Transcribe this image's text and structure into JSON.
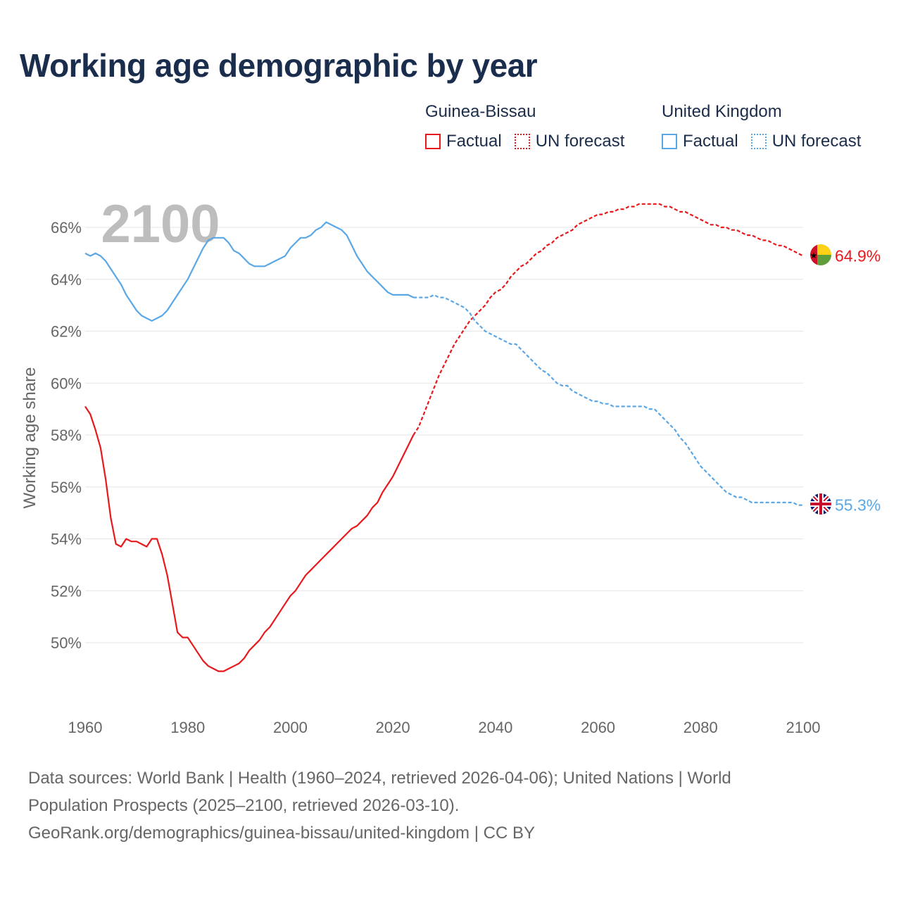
{
  "title": "Working age demographic by year",
  "legend": [
    {
      "country": "Guinea-Bissau",
      "color": "#e8191c",
      "items": [
        "Factual",
        "UN forecast"
      ]
    },
    {
      "country": "United Kingdom",
      "color": "#5aa7e6",
      "items": [
        "Factual",
        "UN forecast"
      ]
    }
  ],
  "footer": {
    "line1": "Data sources: World Bank | Health (1960–2024, retrieved 2026-04-06); United Nations | World",
    "line2": "Population Prospects (2025–2100, retrieved 2026-03-10).",
    "line3": "GeoRank.org/demographics/guinea-bissau/united-kingdom | CC BY"
  },
  "chart_data": {
    "type": "line",
    "title": "Working age demographic by year",
    "year_label": "2100",
    "xlabel": "",
    "ylabel": "Working age share",
    "xlim": [
      1960,
      2100
    ],
    "ylim": [
      48,
      67.5
    ],
    "x_ticks": [
      "1960",
      "1980",
      "2000",
      "2020",
      "2040",
      "2060",
      "2080",
      "2100"
    ],
    "y_ticks": [
      "50%",
      "52%",
      "54%",
      "56%",
      "58%",
      "60%",
      "62%",
      "64%",
      "66%"
    ],
    "grid": true,
    "series": [
      {
        "name": "Guinea-Bissau",
        "color": "#e8191c",
        "end_label": "64.9%",
        "flag": "guinea-bissau",
        "factual": [
          [
            1960,
            59.1
          ],
          [
            1961,
            58.8
          ],
          [
            1962,
            58.2
          ],
          [
            1963,
            57.5
          ],
          [
            1964,
            56.3
          ],
          [
            1965,
            54.8
          ],
          [
            1966,
            53.8
          ],
          [
            1967,
            53.7
          ],
          [
            1968,
            54.0
          ],
          [
            1969,
            53.9
          ],
          [
            1970,
            53.9
          ],
          [
            1971,
            53.8
          ],
          [
            1972,
            53.7
          ],
          [
            1973,
            54.0
          ],
          [
            1974,
            54.0
          ],
          [
            1975,
            53.4
          ],
          [
            1976,
            52.6
          ],
          [
            1977,
            51.5
          ],
          [
            1978,
            50.4
          ],
          [
            1979,
            50.2
          ],
          [
            1980,
            50.2
          ],
          [
            1981,
            49.9
          ],
          [
            1982,
            49.6
          ],
          [
            1983,
            49.3
          ],
          [
            1984,
            49.1
          ],
          [
            1985,
            49.0
          ],
          [
            1986,
            48.9
          ],
          [
            1987,
            48.9
          ],
          [
            1988,
            49.0
          ],
          [
            1989,
            49.1
          ],
          [
            1990,
            49.2
          ],
          [
            1991,
            49.4
          ],
          [
            1992,
            49.7
          ],
          [
            1993,
            49.9
          ],
          [
            1994,
            50.1
          ],
          [
            1995,
            50.4
          ],
          [
            1996,
            50.6
          ],
          [
            1997,
            50.9
          ],
          [
            1998,
            51.2
          ],
          [
            1999,
            51.5
          ],
          [
            2000,
            51.8
          ],
          [
            2001,
            52.0
          ],
          [
            2002,
            52.3
          ],
          [
            2003,
            52.6
          ],
          [
            2004,
            52.8
          ],
          [
            2005,
            53.0
          ],
          [
            2006,
            53.2
          ],
          [
            2007,
            53.4
          ],
          [
            2008,
            53.6
          ],
          [
            2009,
            53.8
          ],
          [
            2010,
            54.0
          ],
          [
            2011,
            54.2
          ],
          [
            2012,
            54.4
          ],
          [
            2013,
            54.5
          ],
          [
            2014,
            54.7
          ],
          [
            2015,
            54.9
          ],
          [
            2016,
            55.2
          ],
          [
            2017,
            55.4
          ],
          [
            2018,
            55.8
          ],
          [
            2019,
            56.1
          ],
          [
            2020,
            56.4
          ],
          [
            2021,
            56.8
          ],
          [
            2022,
            57.2
          ],
          [
            2023,
            57.6
          ],
          [
            2024,
            58.0
          ]
        ],
        "forecast": [
          [
            2024,
            58.0
          ],
          [
            2025,
            58.3
          ],
          [
            2026,
            58.8
          ],
          [
            2027,
            59.3
          ],
          [
            2028,
            59.8
          ],
          [
            2029,
            60.3
          ],
          [
            2030,
            60.7
          ],
          [
            2031,
            61.1
          ],
          [
            2032,
            61.5
          ],
          [
            2033,
            61.8
          ],
          [
            2034,
            62.1
          ],
          [
            2035,
            62.4
          ],
          [
            2036,
            62.6
          ],
          [
            2037,
            62.8
          ],
          [
            2038,
            63.0
          ],
          [
            2039,
            63.3
          ],
          [
            2040,
            63.5
          ],
          [
            2041,
            63.6
          ],
          [
            2042,
            63.8
          ],
          [
            2043,
            64.1
          ],
          [
            2044,
            64.3
          ],
          [
            2045,
            64.5
          ],
          [
            2046,
            64.6
          ],
          [
            2047,
            64.8
          ],
          [
            2048,
            65.0
          ],
          [
            2049,
            65.1
          ],
          [
            2050,
            65.3
          ],
          [
            2051,
            65.4
          ],
          [
            2052,
            65.6
          ],
          [
            2053,
            65.7
          ],
          [
            2054,
            65.8
          ],
          [
            2055,
            65.9
          ],
          [
            2056,
            66.1
          ],
          [
            2057,
            66.2
          ],
          [
            2058,
            66.3
          ],
          [
            2059,
            66.4
          ],
          [
            2060,
            66.5
          ],
          [
            2061,
            66.5
          ],
          [
            2062,
            66.6
          ],
          [
            2063,
            66.6
          ],
          [
            2064,
            66.7
          ],
          [
            2065,
            66.7
          ],
          [
            2066,
            66.8
          ],
          [
            2067,
            66.8
          ],
          [
            2068,
            66.9
          ],
          [
            2069,
            66.9
          ],
          [
            2070,
            66.9
          ],
          [
            2071,
            66.9
          ],
          [
            2072,
            66.9
          ],
          [
            2073,
            66.8
          ],
          [
            2074,
            66.8
          ],
          [
            2075,
            66.7
          ],
          [
            2076,
            66.6
          ],
          [
            2077,
            66.6
          ],
          [
            2078,
            66.5
          ],
          [
            2079,
            66.4
          ],
          [
            2080,
            66.3
          ],
          [
            2081,
            66.2
          ],
          [
            2082,
            66.1
          ],
          [
            2083,
            66.1
          ],
          [
            2084,
            66.0
          ],
          [
            2085,
            66.0
          ],
          [
            2086,
            65.9
          ],
          [
            2087,
            65.9
          ],
          [
            2088,
            65.8
          ],
          [
            2089,
            65.7
          ],
          [
            2090,
            65.7
          ],
          [
            2091,
            65.6
          ],
          [
            2092,
            65.5
          ],
          [
            2093,
            65.5
          ],
          [
            2094,
            65.4
          ],
          [
            2095,
            65.3
          ],
          [
            2096,
            65.3
          ],
          [
            2097,
            65.2
          ],
          [
            2098,
            65.1
          ],
          [
            2099,
            65.0
          ],
          [
            2100,
            64.9
          ]
        ]
      },
      {
        "name": "United Kingdom",
        "color": "#5aa7e6",
        "end_label": "55.3%",
        "flag": "united-kingdom",
        "factual": [
          [
            1960,
            65.0
          ],
          [
            1961,
            64.9
          ],
          [
            1962,
            65.0
          ],
          [
            1963,
            64.9
          ],
          [
            1964,
            64.7
          ],
          [
            1965,
            64.4
          ],
          [
            1966,
            64.1
          ],
          [
            1967,
            63.8
          ],
          [
            1968,
            63.4
          ],
          [
            1969,
            63.1
          ],
          [
            1970,
            62.8
          ],
          [
            1971,
            62.6
          ],
          [
            1972,
            62.5
          ],
          [
            1973,
            62.4
          ],
          [
            1974,
            62.5
          ],
          [
            1975,
            62.6
          ],
          [
            1976,
            62.8
          ],
          [
            1977,
            63.1
          ],
          [
            1978,
            63.4
          ],
          [
            1979,
            63.7
          ],
          [
            1980,
            64.0
          ],
          [
            1981,
            64.4
          ],
          [
            1982,
            64.8
          ],
          [
            1983,
            65.2
          ],
          [
            1984,
            65.5
          ],
          [
            1985,
            65.6
          ],
          [
            1986,
            65.6
          ],
          [
            1987,
            65.6
          ],
          [
            1988,
            65.4
          ],
          [
            1989,
            65.1
          ],
          [
            1990,
            65.0
          ],
          [
            1991,
            64.8
          ],
          [
            1992,
            64.6
          ],
          [
            1993,
            64.5
          ],
          [
            1994,
            64.5
          ],
          [
            1995,
            64.5
          ],
          [
            1996,
            64.6
          ],
          [
            1997,
            64.7
          ],
          [
            1998,
            64.8
          ],
          [
            1999,
            64.9
          ],
          [
            2000,
            65.2
          ],
          [
            2001,
            65.4
          ],
          [
            2002,
            65.6
          ],
          [
            2003,
            65.6
          ],
          [
            2004,
            65.7
          ],
          [
            2005,
            65.9
          ],
          [
            2006,
            66.0
          ],
          [
            2007,
            66.2
          ],
          [
            2008,
            66.1
          ],
          [
            2009,
            66.0
          ],
          [
            2010,
            65.9
          ],
          [
            2011,
            65.7
          ],
          [
            2012,
            65.3
          ],
          [
            2013,
            64.9
          ],
          [
            2014,
            64.6
          ],
          [
            2015,
            64.3
          ],
          [
            2016,
            64.1
          ],
          [
            2017,
            63.9
          ],
          [
            2018,
            63.7
          ],
          [
            2019,
            63.5
          ],
          [
            2020,
            63.4
          ],
          [
            2021,
            63.4
          ],
          [
            2022,
            63.4
          ],
          [
            2023,
            63.4
          ],
          [
            2024,
            63.3
          ]
        ],
        "forecast": [
          [
            2024,
            63.3
          ],
          [
            2025,
            63.3
          ],
          [
            2026,
            63.3
          ],
          [
            2027,
            63.3
          ],
          [
            2028,
            63.4
          ],
          [
            2029,
            63.3
          ],
          [
            2030,
            63.3
          ],
          [
            2031,
            63.2
          ],
          [
            2032,
            63.1
          ],
          [
            2033,
            63.0
          ],
          [
            2034,
            62.9
          ],
          [
            2035,
            62.7
          ],
          [
            2036,
            62.4
          ],
          [
            2037,
            62.2
          ],
          [
            2038,
            62.0
          ],
          [
            2039,
            61.9
          ],
          [
            2040,
            61.8
          ],
          [
            2041,
            61.7
          ],
          [
            2042,
            61.6
          ],
          [
            2043,
            61.5
          ],
          [
            2044,
            61.5
          ],
          [
            2045,
            61.3
          ],
          [
            2046,
            61.1
          ],
          [
            2047,
            60.9
          ],
          [
            2048,
            60.7
          ],
          [
            2049,
            60.5
          ],
          [
            2050,
            60.4
          ],
          [
            2051,
            60.2
          ],
          [
            2052,
            60.0
          ],
          [
            2053,
            59.9
          ],
          [
            2054,
            59.9
          ],
          [
            2055,
            59.7
          ],
          [
            2056,
            59.6
          ],
          [
            2057,
            59.5
          ],
          [
            2058,
            59.4
          ],
          [
            2059,
            59.3
          ],
          [
            2060,
            59.3
          ],
          [
            2061,
            59.2
          ],
          [
            2062,
            59.2
          ],
          [
            2063,
            59.1
          ],
          [
            2064,
            59.1
          ],
          [
            2065,
            59.1
          ],
          [
            2066,
            59.1
          ],
          [
            2067,
            59.1
          ],
          [
            2068,
            59.1
          ],
          [
            2069,
            59.1
          ],
          [
            2070,
            59.0
          ],
          [
            2071,
            59.0
          ],
          [
            2072,
            58.8
          ],
          [
            2073,
            58.6
          ],
          [
            2074,
            58.4
          ],
          [
            2075,
            58.2
          ],
          [
            2076,
            57.9
          ],
          [
            2077,
            57.7
          ],
          [
            2078,
            57.4
          ],
          [
            2079,
            57.1
          ],
          [
            2080,
            56.8
          ],
          [
            2081,
            56.6
          ],
          [
            2082,
            56.4
          ],
          [
            2083,
            56.2
          ],
          [
            2084,
            56.0
          ],
          [
            2085,
            55.8
          ],
          [
            2086,
            55.7
          ],
          [
            2087,
            55.6
          ],
          [
            2088,
            55.6
          ],
          [
            2089,
            55.5
          ],
          [
            2090,
            55.4
          ],
          [
            2091,
            55.4
          ],
          [
            2092,
            55.4
          ],
          [
            2093,
            55.4
          ],
          [
            2094,
            55.4
          ],
          [
            2095,
            55.4
          ],
          [
            2096,
            55.4
          ],
          [
            2097,
            55.4
          ],
          [
            2098,
            55.4
          ],
          [
            2099,
            55.3
          ],
          [
            2100,
            55.3
          ]
        ]
      }
    ]
  }
}
